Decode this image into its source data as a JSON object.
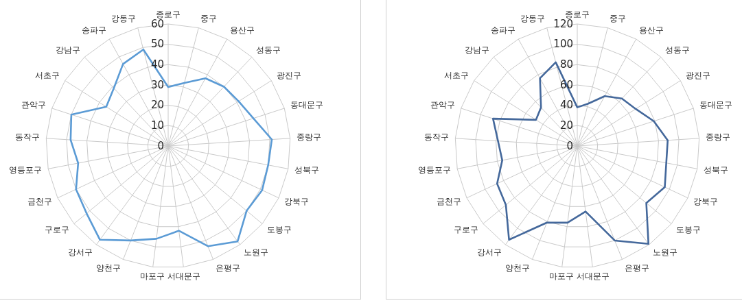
{
  "chart_data": [
    {
      "type": "radar",
      "categories": [
        "종로구",
        "중구",
        "용산구",
        "성동구",
        "광진구",
        "동대문구",
        "중랑구",
        "성북구",
        "강북구",
        "도봉구",
        "노원구",
        "은평구",
        "서대문구",
        "마포구",
        "양천구",
        "강서구",
        "구로구",
        "금천구",
        "영등포구",
        "동작구",
        "관악구",
        "서초구",
        "강남구",
        "송파구",
        "강동구"
      ],
      "series": [
        {
          "color": "#5b9bd5",
          "values": [
            29,
            32,
            38,
            40,
            41,
            44,
            51,
            50,
            51,
            50,
            58,
            53,
            42,
            46,
            50,
            57,
            52,
            50,
            45,
            48,
            50,
            36,
            39,
            46,
            49
          ]
        }
      ],
      "ylim": [
        0,
        60
      ],
      "yticks": [
        0,
        10,
        20,
        30,
        40,
        50,
        60
      ],
      "grid": true
    },
    {
      "type": "radar",
      "categories": [
        "종로구",
        "중구",
        "용산구",
        "성동구",
        "광진구",
        "동대문구",
        "중랑구",
        "성북구",
        "강북구",
        "도봉구",
        "노원구",
        "은평구",
        "서대문구",
        "마포구",
        "양천구",
        "강서구",
        "구로구",
        "금천구",
        "영등포구",
        "동작구",
        "관악구",
        "서초구",
        "강남구",
        "송파구",
        "강동구"
      ],
      "series": [
        {
          "color": "#44689b",
          "values": [
            38,
            43,
            56,
            64,
            68,
            79,
            89,
            89,
            95,
            88,
            119,
            100,
            65,
            76,
            81,
            114,
            91,
            87,
            75,
            78,
            87,
            48,
            52,
            76,
            85
          ]
        }
      ],
      "ylim": [
        0,
        120
      ],
      "yticks": [
        0,
        20,
        40,
        60,
        80,
        100,
        120
      ],
      "grid": true
    }
  ]
}
